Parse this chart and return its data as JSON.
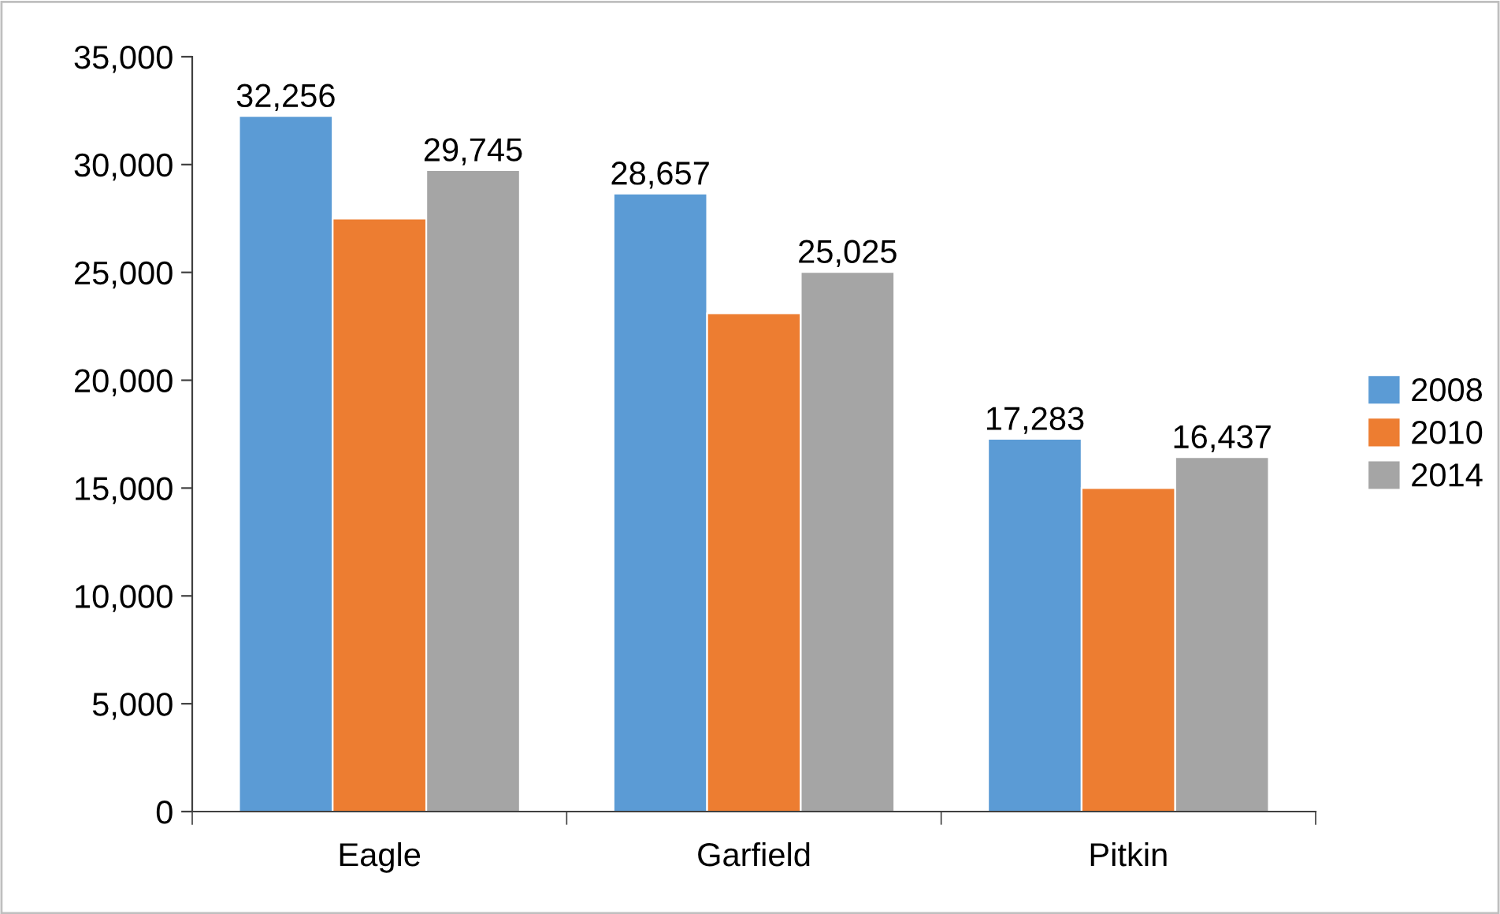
{
  "chart_data": {
    "type": "bar",
    "categories": [
      "Eagle",
      "Garfield",
      "Pitkin"
    ],
    "series": [
      {
        "name": "2008",
        "color": "#5b9bd5",
        "values": [
          32256,
          28657,
          17283
        ],
        "value_labels": [
          "32,256",
          "28,657",
          "17,283"
        ]
      },
      {
        "name": "2010",
        "color": "#ed7d31",
        "values": [
          27500,
          23100,
          15000
        ],
        "value_labels": [
          null,
          null,
          null
        ]
      },
      {
        "name": "2014",
        "color": "#a5a5a5",
        "values": [
          29745,
          25025,
          16437
        ],
        "value_labels": [
          "29,745",
          "25,025",
          "16,437"
        ]
      }
    ],
    "ylim": [
      0,
      35000
    ],
    "yticks": [
      0,
      {
        "value": 5000,
        "label": "5,000"
      },
      {
        "value": 10000,
        "label": "10,000"
      },
      {
        "value": 15000,
        "label": "15,000"
      },
      {
        "value": 20000,
        "label": "20,000"
      },
      {
        "value": 25000,
        "label": "25,000"
      },
      {
        "value": 30000,
        "label": "30,000"
      },
      {
        "value": 35000,
        "label": "35,000"
      }
    ],
    "legend": "right",
    "grid": false
  }
}
